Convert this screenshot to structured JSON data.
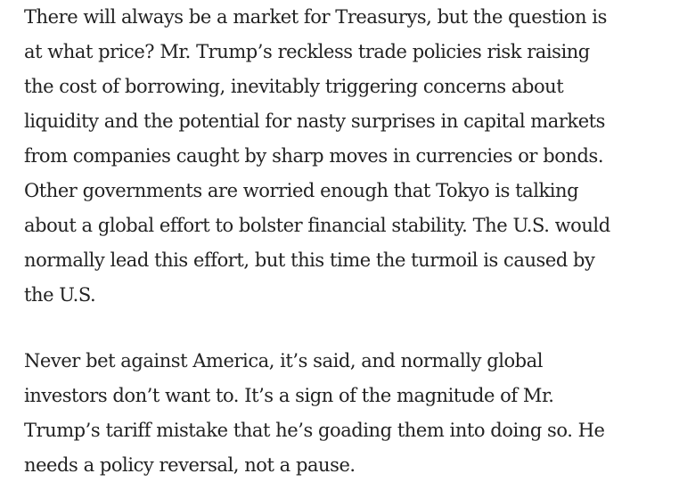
{
  "article": {
    "paragraphs": [
      {
        "lines": [
          "There will always be a market for Treasurys, but the question is",
          "at what price? Mr. Trump’s reckless trade policies risk raising",
          "the cost of borrowing, inevitably triggering concerns about",
          "liquidity and the potential for nasty surprises in capital markets",
          "from companies caught by sharp moves in currencies or bonds.",
          "Other governments are worried enough that Tokyo is talking",
          "about a global effort to bolster financial stability. The U.S. would",
          "normally lead this effort, but this time the turmoil is caused by",
          "the U.S."
        ]
      },
      {
        "lines": [
          "Never bet against America, it’s said, and normally global",
          "investors don’t want to. It’s a sign of the magnitude of Mr.",
          "Trump’s tariff mistake that he’s goading them into doing so. He",
          "needs a policy reversal, not a pause."
        ]
      }
    ]
  }
}
